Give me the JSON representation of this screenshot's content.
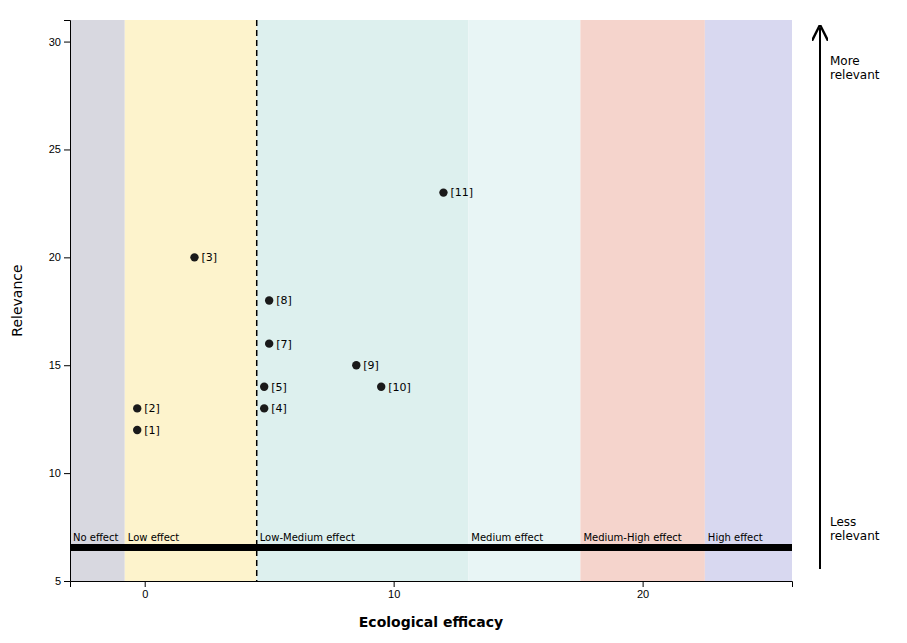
{
  "chart_data": {
    "type": "scatter",
    "xlabel": "Ecological efficacy",
    "ylabel": "Relevance",
    "xlim": [
      -3,
      26
    ],
    "ylim": [
      5,
      31
    ],
    "xticks": [
      0,
      10,
      20
    ],
    "yticks": [
      5,
      10,
      15,
      20,
      25,
      30
    ],
    "grid": false,
    "color": "#1a1a1a",
    "labels": [
      "[1]",
      "[2]",
      "[3]",
      "[4]",
      "[5]",
      "[7]",
      "[8]",
      "[9]",
      "[10]",
      "[11]"
    ],
    "x": [
      -0.3,
      -0.3,
      2.0,
      4.8,
      4.8,
      5.0,
      5.0,
      8.5,
      9.5,
      12.0
    ],
    "values": [
      12,
      13,
      20,
      13,
      14,
      16,
      18,
      15,
      14,
      23
    ],
    "regions": [
      {
        "label": "No effect",
        "xmin": -3,
        "xmax": -0.8,
        "color": "#d8d8e0"
      },
      {
        "label": "Low effect",
        "xmin": -0.8,
        "xmax": 4.5,
        "color": "#fdf3cc"
      },
      {
        "label": "Low-Medium effect",
        "xmin": 4.5,
        "xmax": 13.0,
        "color": "#ddf0ee"
      },
      {
        "label": "Medium effect",
        "xmin": 13.0,
        "xmax": 17.5,
        "color": "#e8f5f5"
      },
      {
        "label": "Medium-High effect",
        "xmin": 17.5,
        "xmax": 22.5,
        "color": "#f5d4cc"
      },
      {
        "label": "High effect",
        "xmin": 22.5,
        "xmax": 26.0,
        "color": "#d8d8f0"
      }
    ],
    "vline": 4.5,
    "hline": 6.55,
    "annotations": [
      "More\nrelevant",
      "Less\nrelevant"
    ]
  }
}
